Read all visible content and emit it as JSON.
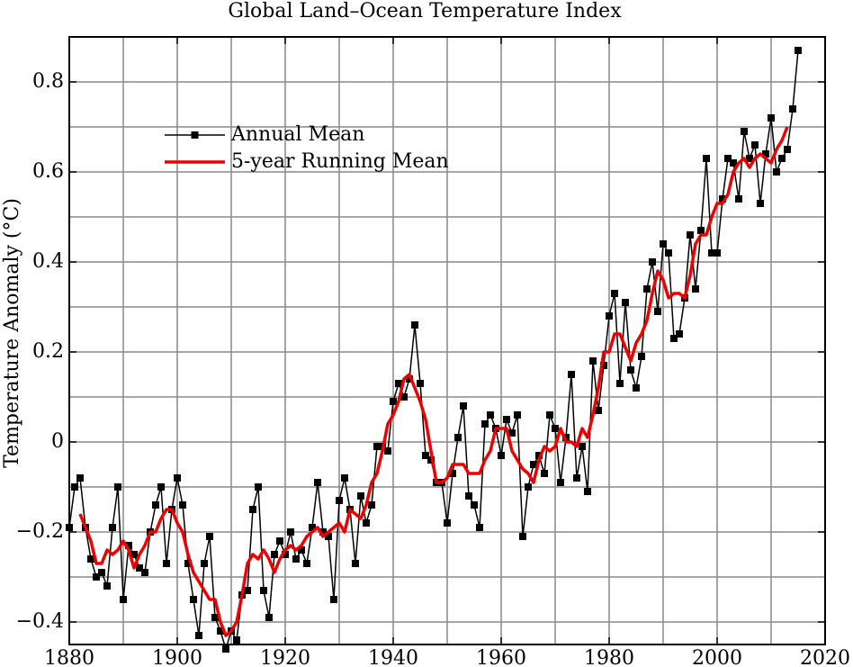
{
  "chart_data": {
    "type": "line",
    "title": "Global Land–Ocean Temperature Index",
    "ylabel": "Temperature Anomaly (°C)",
    "xlim": [
      1880,
      2020
    ],
    "ylim": [
      -0.45,
      0.9
    ],
    "xticks": [
      1880,
      1900,
      1920,
      1940,
      1960,
      1980,
      2000,
      2020
    ],
    "xminorticks": [
      1890,
      1910,
      1930,
      1950,
      1970,
      1990,
      2010
    ],
    "yticks": [
      {
        "value": -0.4,
        "label": "−0.4"
      },
      {
        "value": -0.2,
        "label": "−0.2"
      },
      0,
      0.2,
      0.4,
      0.6,
      0.8
    ],
    "yminorticks": [
      -0.3,
      -0.1,
      0.1,
      0.3,
      0.5,
      0.7
    ],
    "grid": true,
    "legend": "upper left",
    "series": [
      {
        "name": "Annual Mean",
        "color": "#000000",
        "marker": "square",
        "x": [
          1880,
          1881,
          1882,
          1883,
          1884,
          1885,
          1886,
          1887,
          1888,
          1889,
          1890,
          1891,
          1892,
          1893,
          1894,
          1895,
          1896,
          1897,
          1898,
          1899,
          1900,
          1901,
          1902,
          1903,
          1904,
          1905,
          1906,
          1907,
          1908,
          1909,
          1910,
          1911,
          1912,
          1913,
          1914,
          1915,
          1916,
          1917,
          1918,
          1919,
          1920,
          1921,
          1922,
          1923,
          1924,
          1925,
          1926,
          1927,
          1928,
          1929,
          1930,
          1931,
          1932,
          1933,
          1934,
          1935,
          1936,
          1937,
          1938,
          1939,
          1940,
          1941,
          1942,
          1943,
          1944,
          1945,
          1946,
          1947,
          1948,
          1949,
          1950,
          1951,
          1952,
          1953,
          1954,
          1955,
          1956,
          1957,
          1958,
          1959,
          1960,
          1961,
          1962,
          1963,
          1964,
          1965,
          1966,
          1967,
          1968,
          1969,
          1970,
          1971,
          1972,
          1973,
          1974,
          1975,
          1976,
          1977,
          1978,
          1979,
          1980,
          1981,
          1982,
          1983,
          1984,
          1985,
          1986,
          1987,
          1988,
          1989,
          1990,
          1991,
          1992,
          1993,
          1994,
          1995,
          1996,
          1997,
          1998,
          1999,
          2000,
          2001,
          2002,
          2003,
          2004,
          2005,
          2006,
          2007,
          2008,
          2009,
          2010,
          2011,
          2012,
          2013,
          2014,
          2015
        ],
        "values": [
          -0.19,
          -0.1,
          -0.08,
          -0.19,
          -0.26,
          -0.3,
          -0.29,
          -0.32,
          -0.19,
          -0.1,
          -0.35,
          -0.23,
          -0.25,
          -0.28,
          -0.29,
          -0.2,
          -0.14,
          -0.1,
          -0.27,
          -0.15,
          -0.08,
          -0.14,
          -0.27,
          -0.35,
          -0.43,
          -0.27,
          -0.21,
          -0.39,
          -0.42,
          -0.46,
          -0.42,
          -0.44,
          -0.34,
          -0.33,
          -0.15,
          -0.1,
          -0.33,
          -0.39,
          -0.25,
          -0.22,
          -0.25,
          -0.2,
          -0.26,
          -0.24,
          -0.27,
          -0.19,
          -0.09,
          -0.2,
          -0.21,
          -0.35,
          -0.13,
          -0.08,
          -0.15,
          -0.27,
          -0.12,
          -0.18,
          -0.14,
          -0.01,
          -0.01,
          -0.02,
          0.09,
          0.13,
          0.1,
          0.14,
          0.26,
          0.13,
          -0.03,
          -0.04,
          -0.09,
          -0.09,
          -0.18,
          -0.07,
          0.01,
          0.08,
          -0.12,
          -0.14,
          -0.19,
          0.04,
          0.06,
          0.03,
          -0.03,
          0.05,
          0.02,
          0.06,
          -0.21,
          -0.1,
          -0.05,
          -0.03,
          -0.07,
          0.06,
          0.03,
          -0.09,
          0.01,
          0.15,
          -0.08,
          -0.01,
          -0.11,
          0.18,
          0.07,
          0.17,
          0.28,
          0.33,
          0.13,
          0.31,
          0.16,
          0.12,
          0.19,
          0.34,
          0.4,
          0.29,
          0.44,
          0.42,
          0.23,
          0.24,
          0.32,
          0.46,
          0.34,
          0.47,
          0.63,
          0.42,
          0.42,
          0.54,
          0.63,
          0.62,
          0.54,
          0.69,
          0.63,
          0.66,
          0.53,
          0.64,
          0.72,
          0.6,
          0.63,
          0.65,
          0.74,
          0.87
        ]
      },
      {
        "name": "5-year Running Mean",
        "color": "#ee0000",
        "x": [
          1882,
          1883,
          1884,
          1885,
          1886,
          1887,
          1888,
          1889,
          1890,
          1891,
          1892,
          1893,
          1894,
          1895,
          1896,
          1897,
          1898,
          1899,
          1900,
          1901,
          1902,
          1903,
          1904,
          1905,
          1906,
          1907,
          1908,
          1909,
          1910,
          1911,
          1912,
          1913,
          1914,
          1915,
          1916,
          1917,
          1918,
          1919,
          1920,
          1921,
          1922,
          1923,
          1924,
          1925,
          1926,
          1927,
          1928,
          1929,
          1930,
          1931,
          1932,
          1933,
          1934,
          1935,
          1936,
          1937,
          1938,
          1939,
          1940,
          1941,
          1942,
          1943,
          1944,
          1945,
          1946,
          1947,
          1948,
          1949,
          1950,
          1951,
          1952,
          1953,
          1954,
          1955,
          1956,
          1957,
          1958,
          1959,
          1960,
          1961,
          1962,
          1963,
          1964,
          1965,
          1966,
          1967,
          1968,
          1969,
          1970,
          1971,
          1972,
          1973,
          1974,
          1975,
          1976,
          1977,
          1978,
          1979,
          1980,
          1981,
          1982,
          1983,
          1984,
          1985,
          1986,
          1987,
          1988,
          1989,
          1990,
          1991,
          1992,
          1993,
          1994,
          1995,
          1996,
          1997,
          1998,
          1999,
          2000,
          2001,
          2002,
          2003,
          2004,
          2005,
          2006,
          2007,
          2008,
          2009,
          2010,
          2011,
          2012,
          2013
        ],
        "values": [
          -0.16,
          -0.19,
          -0.22,
          -0.27,
          -0.27,
          -0.24,
          -0.25,
          -0.24,
          -0.22,
          -0.24,
          -0.28,
          -0.25,
          -0.23,
          -0.2,
          -0.2,
          -0.17,
          -0.15,
          -0.15,
          -0.18,
          -0.2,
          -0.25,
          -0.29,
          -0.31,
          -0.33,
          -0.35,
          -0.35,
          -0.4,
          -0.43,
          -0.42,
          -0.4,
          -0.34,
          -0.27,
          -0.25,
          -0.26,
          -0.24,
          -0.26,
          -0.29,
          -0.26,
          -0.24,
          -0.23,
          -0.24,
          -0.23,
          -0.21,
          -0.2,
          -0.19,
          -0.21,
          -0.2,
          -0.19,
          -0.18,
          -0.2,
          -0.15,
          -0.16,
          -0.17,
          -0.14,
          -0.09,
          -0.07,
          -0.02,
          0.04,
          0.06,
          0.09,
          0.14,
          0.15,
          0.12,
          0.09,
          0.05,
          -0.02,
          -0.09,
          -0.09,
          -0.08,
          -0.05,
          -0.05,
          -0.05,
          -0.07,
          -0.07,
          -0.07,
          -0.04,
          -0.02,
          0.03,
          0.03,
          0.03,
          -0.02,
          -0.04,
          -0.06,
          -0.07,
          -0.09,
          -0.04,
          -0.01,
          -0.02,
          -0.01,
          0.03,
          0.0,
          0.0,
          -0.01,
          0.03,
          0.01,
          0.06,
          0.12,
          0.2,
          0.2,
          0.24,
          0.24,
          0.21,
          0.18,
          0.22,
          0.24,
          0.27,
          0.33,
          0.38,
          0.36,
          0.32,
          0.33,
          0.33,
          0.32,
          0.37,
          0.44,
          0.46,
          0.46,
          0.5,
          0.53,
          0.53,
          0.55,
          0.6,
          0.62,
          0.63,
          0.61,
          0.63,
          0.64,
          0.63,
          0.62,
          0.65,
          0.67,
          0.7
        ]
      }
    ]
  }
}
